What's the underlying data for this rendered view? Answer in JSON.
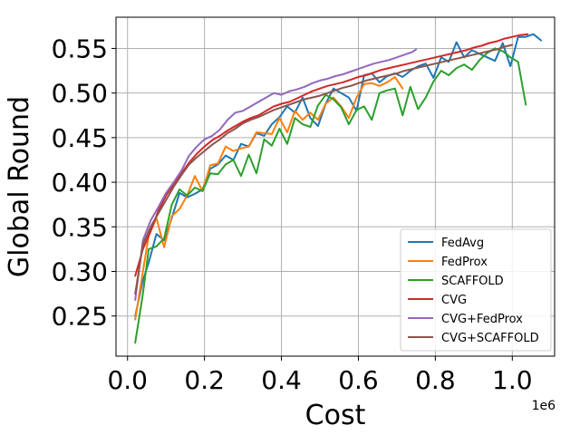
{
  "chart_data": {
    "type": "line",
    "title": "",
    "xlabel": "Cost",
    "ylabel": "Global Round",
    "x_offset_label": "1e6",
    "xlim": [
      -30000,
      1110000
    ],
    "ylim": [
      0.205,
      0.585
    ],
    "x_ticks": [
      0,
      200000,
      400000,
      600000,
      800000,
      1000000
    ],
    "x_tick_labels": [
      "0.0",
      "0.2",
      "0.4",
      "0.6",
      "0.8",
      "1.0"
    ],
    "y_ticks": [
      0.25,
      0.3,
      0.35,
      0.4,
      0.45,
      0.5,
      0.55
    ],
    "y_tick_labels": [
      "0.25",
      "0.30",
      "0.35",
      "0.40",
      "0.45",
      "0.50",
      "0.55"
    ],
    "grid": true,
    "legend_position": "bottom-right",
    "series": [
      {
        "name": "FedAvg",
        "color": "#1f77b4",
        "x": [
          20000,
          40000,
          55000,
          75000,
          95000,
          115000,
          135000,
          155000,
          175000,
          195000,
          215000,
          235000,
          255000,
          275000,
          295000,
          315000,
          335000,
          355000,
          375000,
          395000,
          415000,
          435000,
          455000,
          475000,
          495000,
          515000,
          535000,
          555000,
          575000,
          595000,
          615000,
          635000,
          655000,
          675000,
          695000,
          715000,
          735000,
          755000,
          775000,
          795000,
          815000,
          835000,
          855000,
          875000,
          895000,
          915000,
          935000,
          955000,
          975000,
          995000,
          1015000,
          1035000,
          1055000,
          1075000
        ],
        "y": [
          0.25,
          0.29,
          0.31,
          0.342,
          0.335,
          0.36,
          0.388,
          0.383,
          0.387,
          0.392,
          0.415,
          0.42,
          0.43,
          0.425,
          0.443,
          0.44,
          0.455,
          0.452,
          0.465,
          0.473,
          0.485,
          0.478,
          0.495,
          0.472,
          0.463,
          0.488,
          0.505,
          0.5,
          0.495,
          0.48,
          0.52,
          0.522,
          0.512,
          0.519,
          0.522,
          0.518,
          0.525,
          0.53,
          0.533,
          0.517,
          0.54,
          0.535,
          0.557,
          0.54,
          0.548,
          0.544,
          0.54,
          0.536,
          0.556,
          0.53,
          0.563,
          0.563,
          0.566,
          0.559
        ]
      },
      {
        "name": "FedProx",
        "color": "#ff7f0e",
        "x": [
          20000,
          40000,
          55000,
          75000,
          95000,
          115000,
          135000,
          155000,
          175000,
          195000,
          215000,
          235000,
          255000,
          275000,
          295000,
          315000,
          335000,
          355000,
          375000,
          395000,
          415000,
          435000,
          455000,
          475000,
          495000,
          515000,
          535000,
          555000,
          575000,
          595000,
          615000,
          635000,
          655000,
          675000,
          695000,
          715000
        ],
        "y": [
          0.246,
          0.3,
          0.34,
          0.36,
          0.327,
          0.362,
          0.37,
          0.385,
          0.407,
          0.39,
          0.419,
          0.421,
          0.44,
          0.435,
          0.438,
          0.44,
          0.456,
          0.455,
          0.454,
          0.472,
          0.456,
          0.48,
          0.47,
          0.478,
          0.47,
          0.488,
          0.495,
          0.485,
          0.472,
          0.495,
          0.51,
          0.511,
          0.508,
          0.512,
          0.518,
          0.505
        ]
      },
      {
        "name": "SCAFFOLD",
        "color": "#2ca02c",
        "x": [
          20000,
          40000,
          55000,
          75000,
          95000,
          115000,
          135000,
          155000,
          175000,
          195000,
          215000,
          235000,
          255000,
          275000,
          295000,
          315000,
          335000,
          355000,
          375000,
          395000,
          415000,
          435000,
          455000,
          475000,
          495000,
          515000,
          535000,
          555000,
          575000,
          595000,
          615000,
          635000,
          655000,
          675000,
          695000,
          715000,
          735000,
          755000,
          775000,
          795000,
          815000,
          835000,
          855000,
          875000,
          895000,
          915000,
          935000,
          955000,
          975000,
          995000,
          1015000,
          1035000
        ],
        "y": [
          0.22,
          0.275,
          0.325,
          0.328,
          0.337,
          0.375,
          0.392,
          0.385,
          0.394,
          0.39,
          0.41,
          0.409,
          0.42,
          0.425,
          0.407,
          0.431,
          0.41,
          0.448,
          0.441,
          0.46,
          0.443,
          0.472,
          0.465,
          0.462,
          0.486,
          0.498,
          0.493,
          0.484,
          0.465,
          0.481,
          0.485,
          0.47,
          0.5,
          0.503,
          0.505,
          0.475,
          0.507,
          0.482,
          0.495,
          0.513,
          0.525,
          0.52,
          0.528,
          0.532,
          0.526,
          0.537,
          0.545,
          0.55,
          0.547,
          0.54,
          0.535,
          0.487
        ]
      },
      {
        "name": "CVG",
        "color": "#d62728",
        "x": [
          20000,
          40000,
          60000,
          80000,
          100000,
          120000,
          140000,
          160000,
          180000,
          200000,
          220000,
          240000,
          260000,
          280000,
          300000,
          320000,
          340000,
          360000,
          380000,
          400000,
          420000,
          440000,
          460000,
          480000,
          500000,
          520000,
          540000,
          560000,
          580000,
          600000,
          620000,
          640000,
          660000,
          680000,
          700000,
          720000,
          740000,
          760000,
          780000,
          800000,
          820000,
          840000,
          860000,
          880000,
          900000,
          920000,
          940000,
          960000,
          980000,
          1000000,
          1020000,
          1040000
        ],
        "y": [
          0.295,
          0.325,
          0.345,
          0.368,
          0.385,
          0.398,
          0.41,
          0.422,
          0.432,
          0.44,
          0.447,
          0.452,
          0.458,
          0.463,
          0.468,
          0.472,
          0.475,
          0.48,
          0.485,
          0.488,
          0.49,
          0.494,
          0.498,
          0.502,
          0.505,
          0.508,
          0.51,
          0.512,
          0.515,
          0.518,
          0.52,
          0.523,
          0.526,
          0.528,
          0.53,
          0.532,
          0.534,
          0.536,
          0.538,
          0.54,
          0.542,
          0.544,
          0.546,
          0.548,
          0.551,
          0.553,
          0.556,
          0.558,
          0.561,
          0.563,
          0.565,
          0.566
        ]
      },
      {
        "name": "CVG+FedProx",
        "color": "#9467bd",
        "x": [
          20000,
          40000,
          60000,
          80000,
          100000,
          120000,
          140000,
          160000,
          180000,
          200000,
          220000,
          240000,
          260000,
          280000,
          300000,
          320000,
          340000,
          360000,
          380000,
          400000,
          420000,
          440000,
          460000,
          480000,
          500000,
          520000,
          540000,
          560000,
          580000,
          600000,
          620000,
          640000,
          660000,
          680000,
          700000,
          720000,
          740000,
          750000
        ],
        "y": [
          0.268,
          0.335,
          0.357,
          0.372,
          0.388,
          0.4,
          0.413,
          0.43,
          0.44,
          0.448,
          0.452,
          0.459,
          0.47,
          0.478,
          0.48,
          0.485,
          0.49,
          0.495,
          0.5,
          0.498,
          0.502,
          0.504,
          0.507,
          0.511,
          0.514,
          0.516,
          0.519,
          0.521,
          0.524,
          0.527,
          0.53,
          0.533,
          0.535,
          0.537,
          0.54,
          0.543,
          0.546,
          0.549
        ]
      },
      {
        "name": "CVG+SCAFFOLD",
        "color": "#8c564b",
        "x": [
          20000,
          40000,
          60000,
          80000,
          100000,
          120000,
          140000,
          160000,
          180000,
          200000,
          220000,
          240000,
          260000,
          280000,
          300000,
          320000,
          340000,
          360000,
          380000,
          400000,
          420000,
          440000,
          460000,
          480000,
          500000,
          520000,
          540000,
          560000,
          580000,
          600000,
          620000,
          640000,
          660000,
          680000,
          700000,
          720000,
          740000,
          760000,
          780000,
          800000,
          820000,
          840000,
          860000,
          880000,
          900000,
          920000,
          940000,
          960000,
          980000,
          1000000
        ],
        "y": [
          0.275,
          0.33,
          0.35,
          0.365,
          0.38,
          0.395,
          0.408,
          0.42,
          0.428,
          0.435,
          0.442,
          0.448,
          0.455,
          0.46,
          0.466,
          0.47,
          0.473,
          0.477,
          0.481,
          0.484,
          0.487,
          0.49,
          0.493,
          0.495,
          0.497,
          0.5,
          0.503,
          0.506,
          0.508,
          0.511,
          0.514,
          0.516,
          0.518,
          0.52,
          0.522,
          0.525,
          0.527,
          0.529,
          0.531,
          0.533,
          0.535,
          0.537,
          0.539,
          0.541,
          0.543,
          0.545,
          0.547,
          0.549,
          0.552,
          0.554
        ]
      }
    ]
  }
}
